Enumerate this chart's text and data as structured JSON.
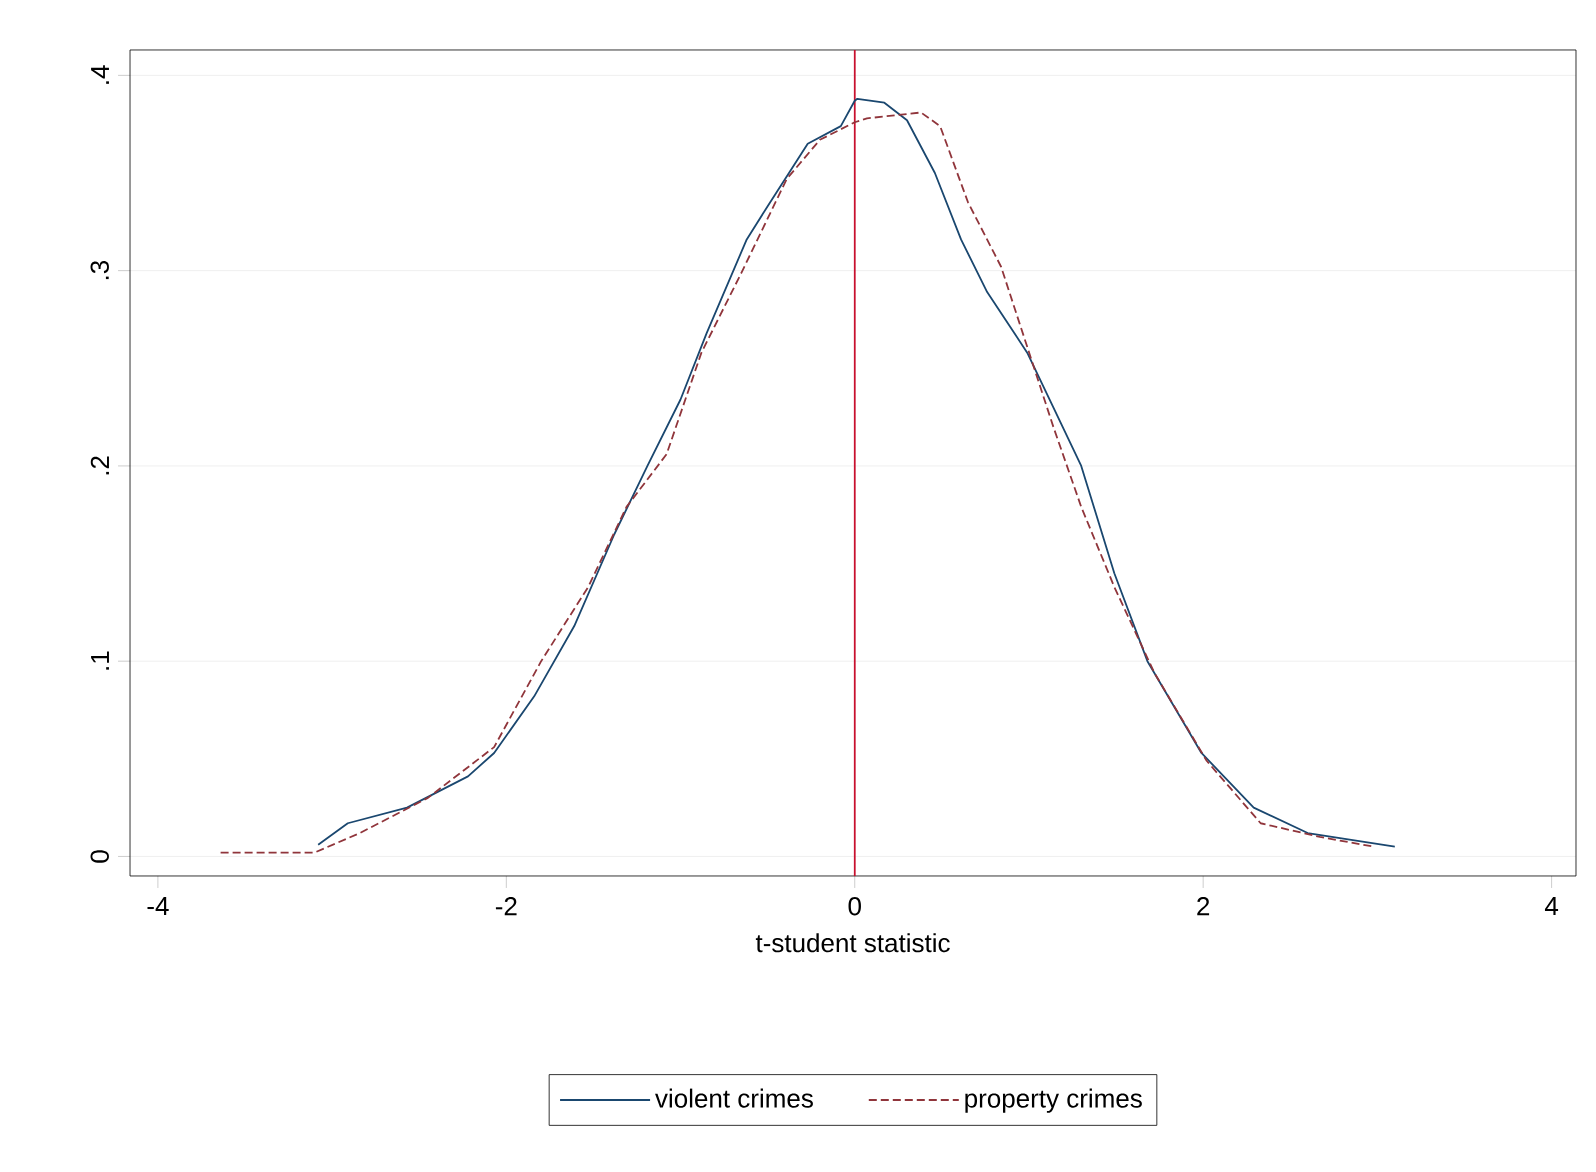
{
  "chart_data": {
    "type": "line",
    "xlabel": "t-student statistic",
    "xlim": [
      -4.16,
      4.14
    ],
    "xticks": [
      -4,
      -2,
      0,
      2,
      4
    ],
    "ylim": [
      -0.01,
      0.413
    ],
    "yticks": [
      0,
      {
        "value": 0.1,
        "label": ".1"
      },
      {
        "value": 0.2,
        "label": ".2"
      },
      {
        "value": 0.3,
        "label": ".3"
      },
      {
        "value": 0.4,
        "label": ".4"
      }
    ],
    "grid": "y",
    "legend": "bottom",
    "marker": "none",
    "ref_lines": [
      {
        "axis": "x",
        "value": 0,
        "color": "#c8102e"
      }
    ],
    "series": [
      {
        "name": "violent crimes",
        "color": "#1a476f",
        "line_style": "solid",
        "x": [
          -3.08,
          -2.91,
          -2.57,
          -2.22,
          -2.07,
          -1.84,
          -1.61,
          -1.38,
          -1.19,
          -1.0,
          -0.85,
          -0.62,
          -0.5,
          -0.27,
          -0.08,
          0.0,
          0.015,
          0.17,
          0.3,
          0.46,
          0.61,
          0.76,
          0.99,
          1.14,
          1.3,
          1.49,
          1.68,
          1.99,
          2.29,
          2.6,
          3.1
        ],
        "values": [
          0.006,
          0.017,
          0.025,
          0.041,
          0.053,
          0.082,
          0.118,
          0.165,
          0.2,
          0.234,
          0.268,
          0.316,
          0.333,
          0.365,
          0.374,
          0.387,
          0.388,
          0.386,
          0.377,
          0.35,
          0.316,
          0.289,
          0.258,
          0.23,
          0.2,
          0.145,
          0.1,
          0.053,
          0.025,
          0.012,
          0.005
        ]
      },
      {
        "name": "property crimes",
        "color": "#90353b",
        "line_style": "dashed",
        "x": [
          -3.64,
          -3.1,
          -2.84,
          -2.45,
          -2.07,
          -1.8,
          -1.53,
          -1.31,
          -1.08,
          -0.88,
          -0.65,
          -0.39,
          -0.2,
          0.0,
          0.07,
          0.38,
          0.49,
          0.65,
          0.84,
          0.99,
          1.14,
          1.3,
          1.49,
          1.72,
          2.02,
          2.33,
          2.67,
          2.98
        ],
        "values": [
          0.002,
          0.002,
          0.012,
          0.03,
          0.056,
          0.1,
          0.138,
          0.179,
          0.206,
          0.258,
          0.299,
          0.347,
          0.367,
          0.376,
          0.378,
          0.381,
          0.374,
          0.335,
          0.302,
          0.261,
          0.22,
          0.179,
          0.138,
          0.094,
          0.049,
          0.017,
          0.01,
          0.005
        ]
      }
    ]
  }
}
